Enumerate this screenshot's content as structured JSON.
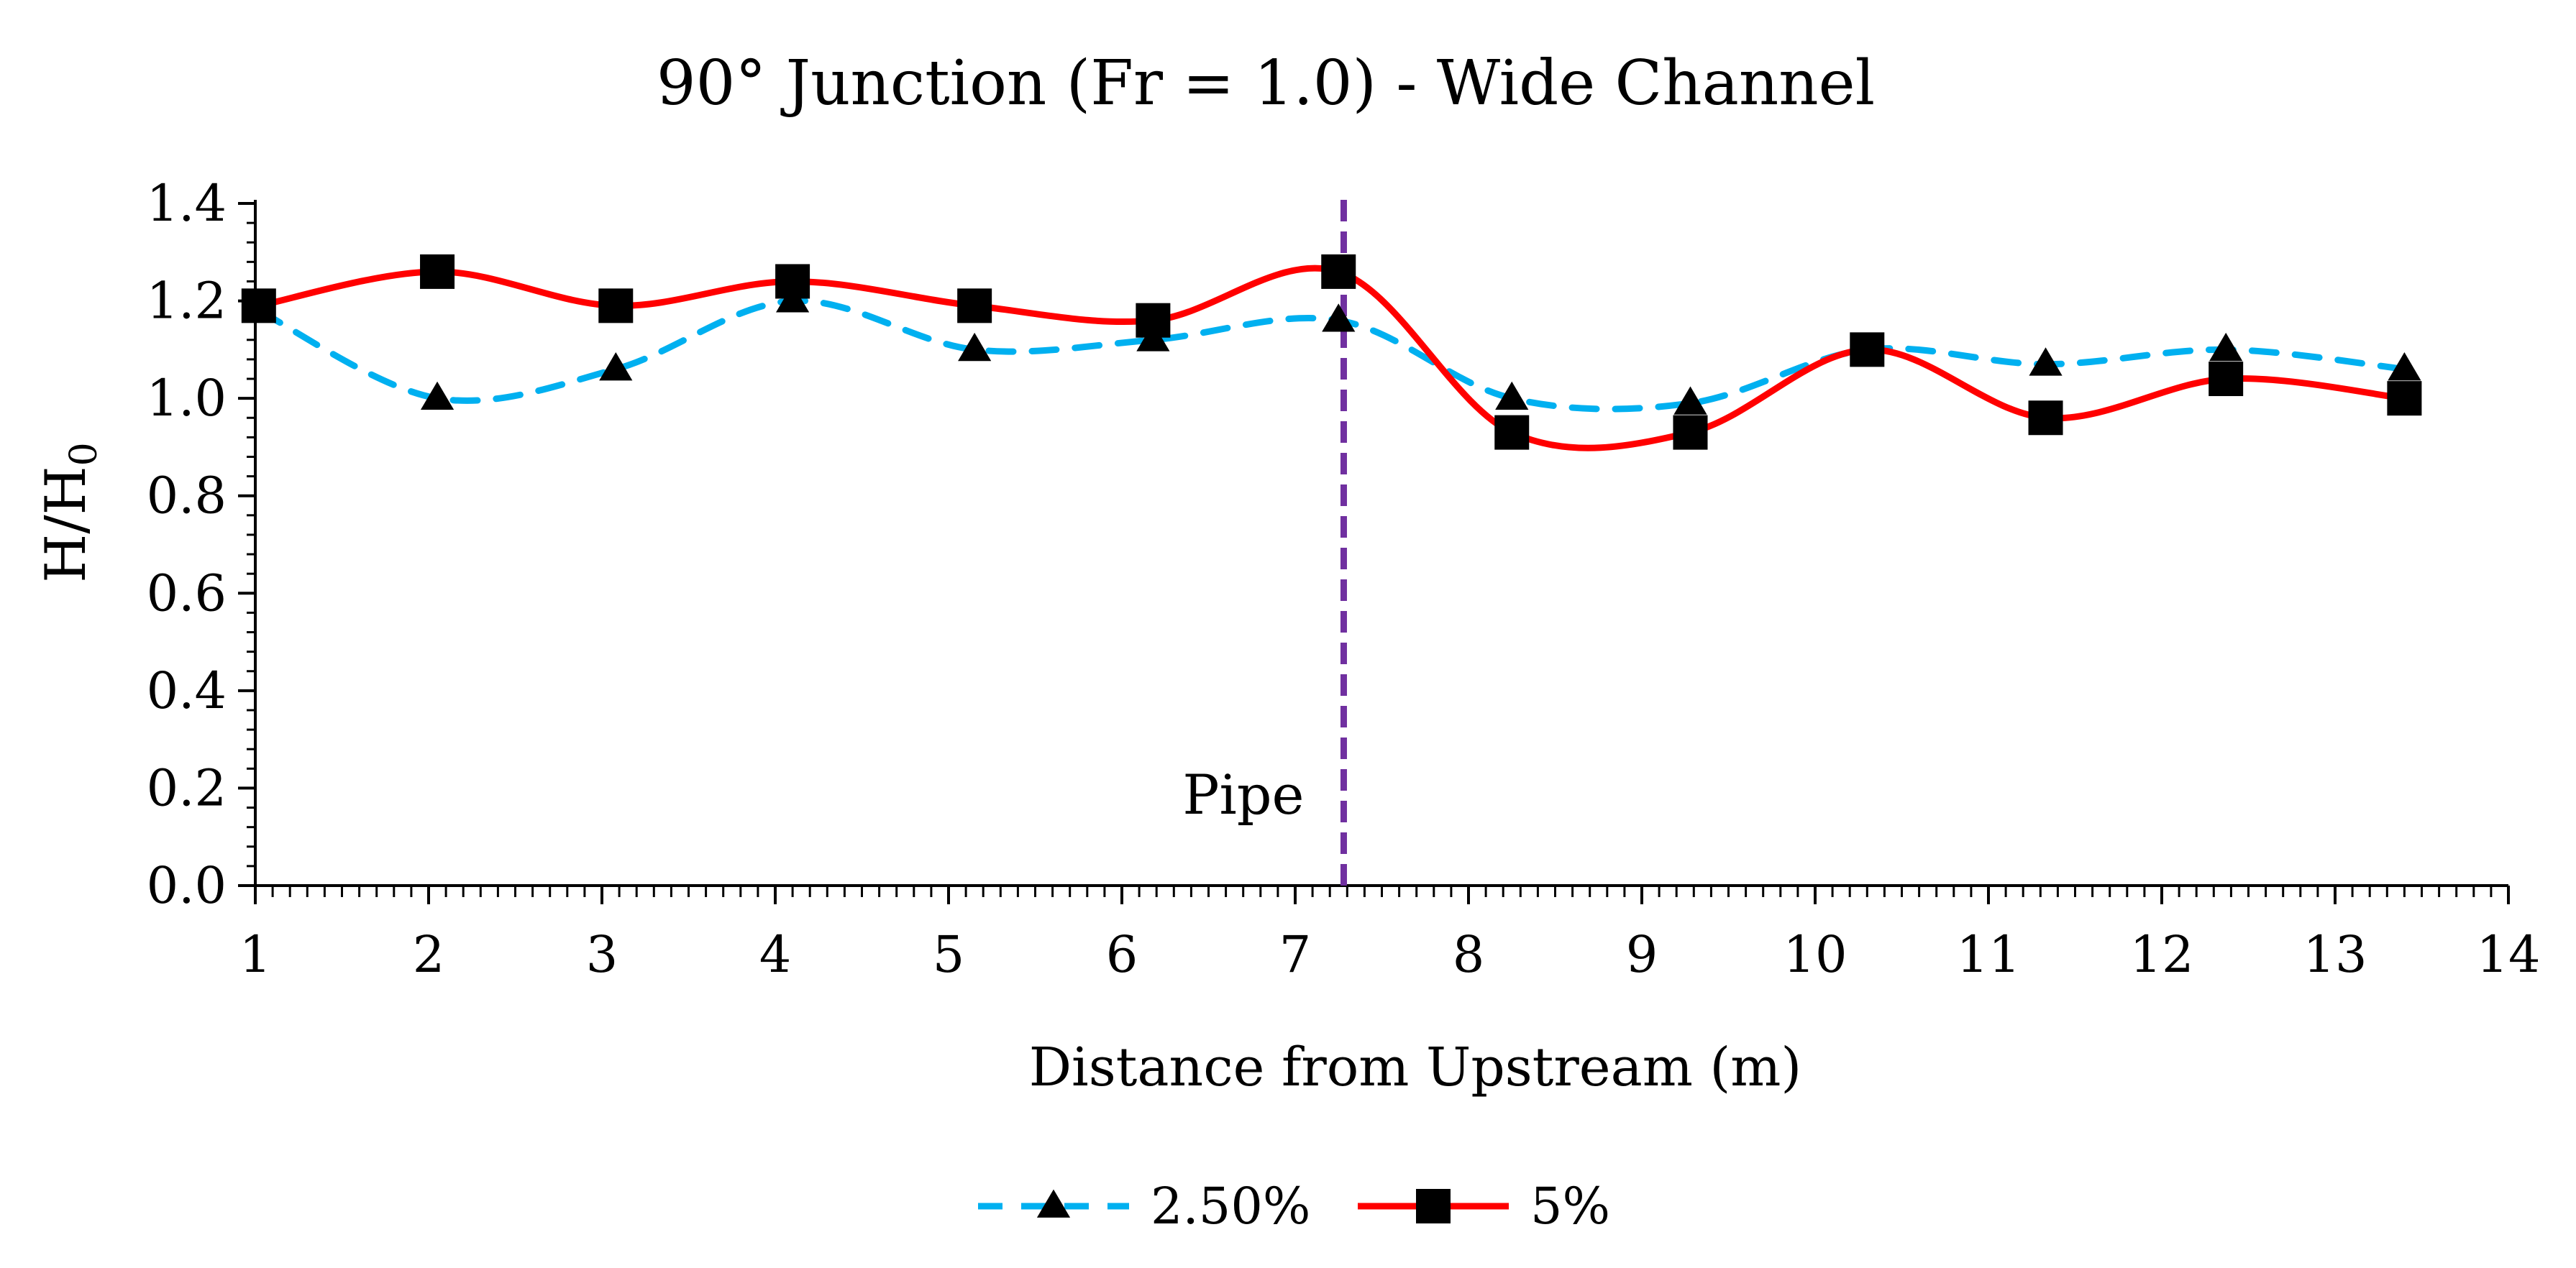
{
  "chart_data": {
    "type": "line",
    "title": "90° Junction (Fr = 1.0) - Wide Channel",
    "xlabel": "Distance from Upstream (m)",
    "ylabel_main": "H/H",
    "ylabel_sub": "0",
    "xlim": [
      1,
      14
    ],
    "ylim": [
      0,
      1.4
    ],
    "x_ticks": [
      "1",
      "2",
      "3",
      "4",
      "5",
      "6",
      "7",
      "8",
      "9",
      "10",
      "11",
      "12",
      "13",
      "14"
    ],
    "y_ticks": [
      "0.0",
      "0.2",
      "0.4",
      "0.6",
      "0.8",
      "1.0",
      "1.2",
      "1.4"
    ],
    "pipe": {
      "label": "Pipe",
      "x": 7.28,
      "color": "#7030a0"
    },
    "series": [
      {
        "name": "2.50%",
        "color": "#00b0f0",
        "line_style": "dashed",
        "marker": "triangle",
        "x": [
          1.02,
          2.05,
          3.08,
          4.1,
          5.15,
          6.18,
          7.25,
          8.25,
          9.28,
          10.3,
          11.33,
          12.37,
          13.4
        ],
        "values": [
          1.18,
          1.0,
          1.06,
          1.2,
          1.1,
          1.12,
          1.16,
          1.0,
          0.99,
          1.1,
          1.07,
          1.1,
          1.06
        ]
      },
      {
        "name": "5%",
        "color": "#ff0000",
        "line_style": "solid",
        "marker": "square",
        "x": [
          1.02,
          2.05,
          3.08,
          4.1,
          5.15,
          6.18,
          7.25,
          8.25,
          9.28,
          10.3,
          11.33,
          12.37,
          13.4
        ],
        "values": [
          1.19,
          1.26,
          1.19,
          1.24,
          1.19,
          1.16,
          1.26,
          0.93,
          0.93,
          1.1,
          0.96,
          1.04,
          1.0
        ]
      }
    ]
  }
}
